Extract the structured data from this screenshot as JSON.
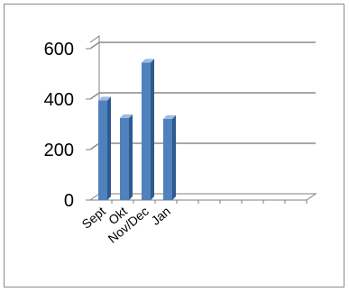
{
  "chart_data": {
    "type": "bar",
    "categories": [
      "Sept",
      "Okt",
      "Nov/Dec",
      "Jan",
      "",
      "",
      "",
      "",
      "",
      ""
    ],
    "values": [
      395,
      325,
      545,
      322,
      null,
      null,
      null,
      null,
      null,
      null
    ],
    "ylim": [
      0,
      600
    ],
    "yticks": [
      0,
      200,
      400,
      600
    ],
    "grid": true,
    "legend": "none",
    "colors": {
      "bar_front": "#4f81bd",
      "bar_side": "#2f5a8f",
      "bar_top": "#9bbbe3",
      "grid": "#8c8c8c",
      "axis": "#7f7f7f"
    }
  }
}
